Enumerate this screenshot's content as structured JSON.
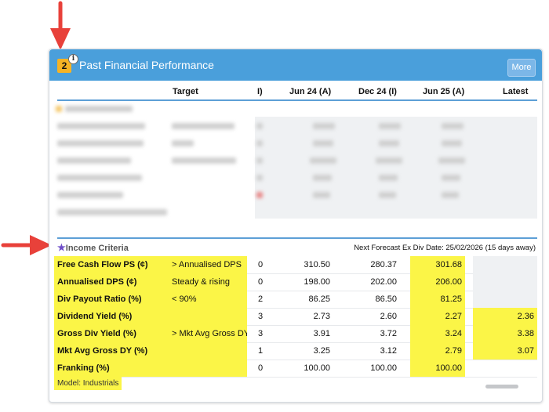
{
  "panel": {
    "badge": "2",
    "info_glyph": "i",
    "title": "Past Financial Performance",
    "more_label": "More"
  },
  "columns": [
    "Target",
    "I)",
    "Jun 24 (A)",
    "Dec 24 (I)",
    "Jun 25 (A)",
    "Latest"
  ],
  "income": {
    "title": "Income Criteria",
    "note": "Next Forecast Ex Div Date: 25/02/2026 (15 days away)",
    "rows": [
      {
        "label": "Free Cash Flow PS (¢)",
        "target": "> Annualised DPS",
        "i": "0",
        "jun24": "310.50",
        "dec24": "280.37",
        "jun25": "301.68",
        "latest": ""
      },
      {
        "label": "Annualised DPS (¢)",
        "target": "Steady & rising",
        "i": "0",
        "jun24": "198.00",
        "dec24": "202.00",
        "jun25": "206.00",
        "latest": ""
      },
      {
        "label": "Div Payout Ratio (%)",
        "target": "< 90%",
        "i": "2",
        "jun24": "86.25",
        "dec24": "86.50",
        "jun25": "81.25",
        "latest": ""
      },
      {
        "label": "Dividend Yield (%)",
        "target": "",
        "i": "3",
        "jun24": "2.73",
        "dec24": "2.60",
        "jun25": "2.27",
        "latest": "2.36"
      },
      {
        "label": "Gross Div Yield (%)",
        "target": "> Mkt Avg Gross DY",
        "i": "3",
        "jun24": "3.91",
        "dec24": "3.72",
        "jun25": "3.24",
        "latest": "3.38"
      },
      {
        "label": "Mkt Avg Gross DY (%)",
        "target": "",
        "i": "1",
        "jun24": "3.25",
        "dec24": "3.12",
        "jun25": "2.79",
        "latest": "3.07"
      },
      {
        "label": "Franking (%)",
        "target": "",
        "i": "0",
        "jun24": "100.00",
        "dec24": "100.00",
        "jun25": "100.00",
        "latest": ""
      }
    ]
  },
  "model_label": "Model: Industrials",
  "colors": {
    "header": "#4a9fdb",
    "highlight": "#fbf547",
    "arrow": "#e8413a",
    "badge": "#f5b325",
    "star": "#6f4ec9"
  }
}
